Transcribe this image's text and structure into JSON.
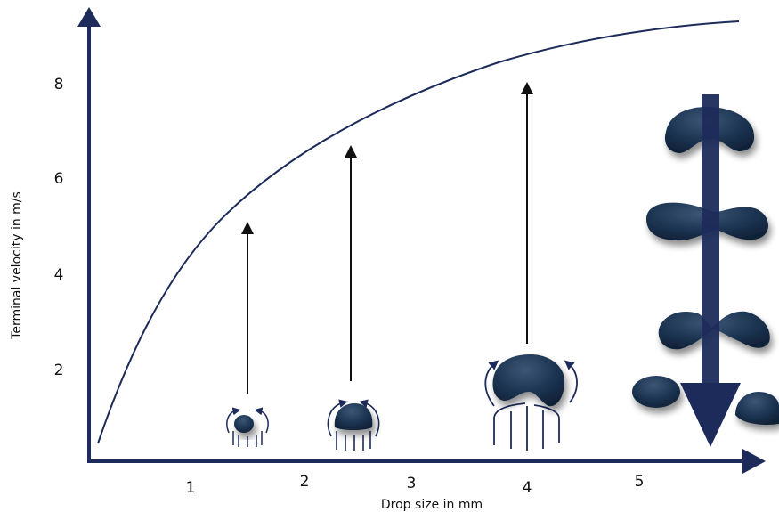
{
  "diagram": {
    "x_axis_label": "Drop size in mm",
    "y_axis_label": "Terminal velocity in m/s",
    "x_ticks": [
      "1",
      "2",
      "3",
      "4",
      "5"
    ],
    "y_ticks": [
      "2",
      "4",
      "6",
      "8"
    ],
    "colors": {
      "axis": "#1c2b5a",
      "curve": "#1c2b5a",
      "drop": "#1b3350",
      "drop_highlight": "#3d5676",
      "arrow": "#111111",
      "fall_arrow": "#1c2b5a"
    },
    "drops": [
      {
        "name": "small-drop",
        "shape": "sphere"
      },
      {
        "name": "medium-drop",
        "shape": "flattened-sphere"
      },
      {
        "name": "large-drop",
        "shape": "parachute"
      },
      {
        "name": "breaking-drop",
        "shape": "breakup-sequence"
      }
    ]
  }
}
